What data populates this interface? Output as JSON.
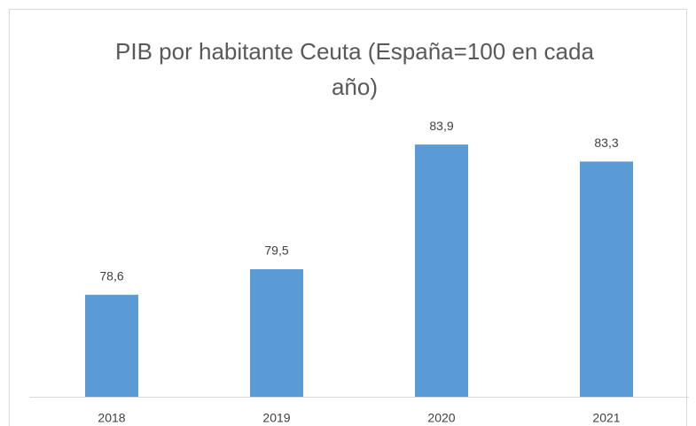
{
  "chart_data": {
    "type": "bar",
    "title": "PIB por habitante Ceuta (España=100 en cada año)",
    "categories": [
      "2018",
      "2019",
      "2020",
      "2021"
    ],
    "values": [
      78.6,
      79.5,
      83.9,
      83.3
    ],
    "value_labels": [
      "78,6",
      "79,5",
      "83,9",
      "83,3"
    ],
    "color": "#5b9bd5",
    "ylim": [
      75,
      85
    ]
  }
}
